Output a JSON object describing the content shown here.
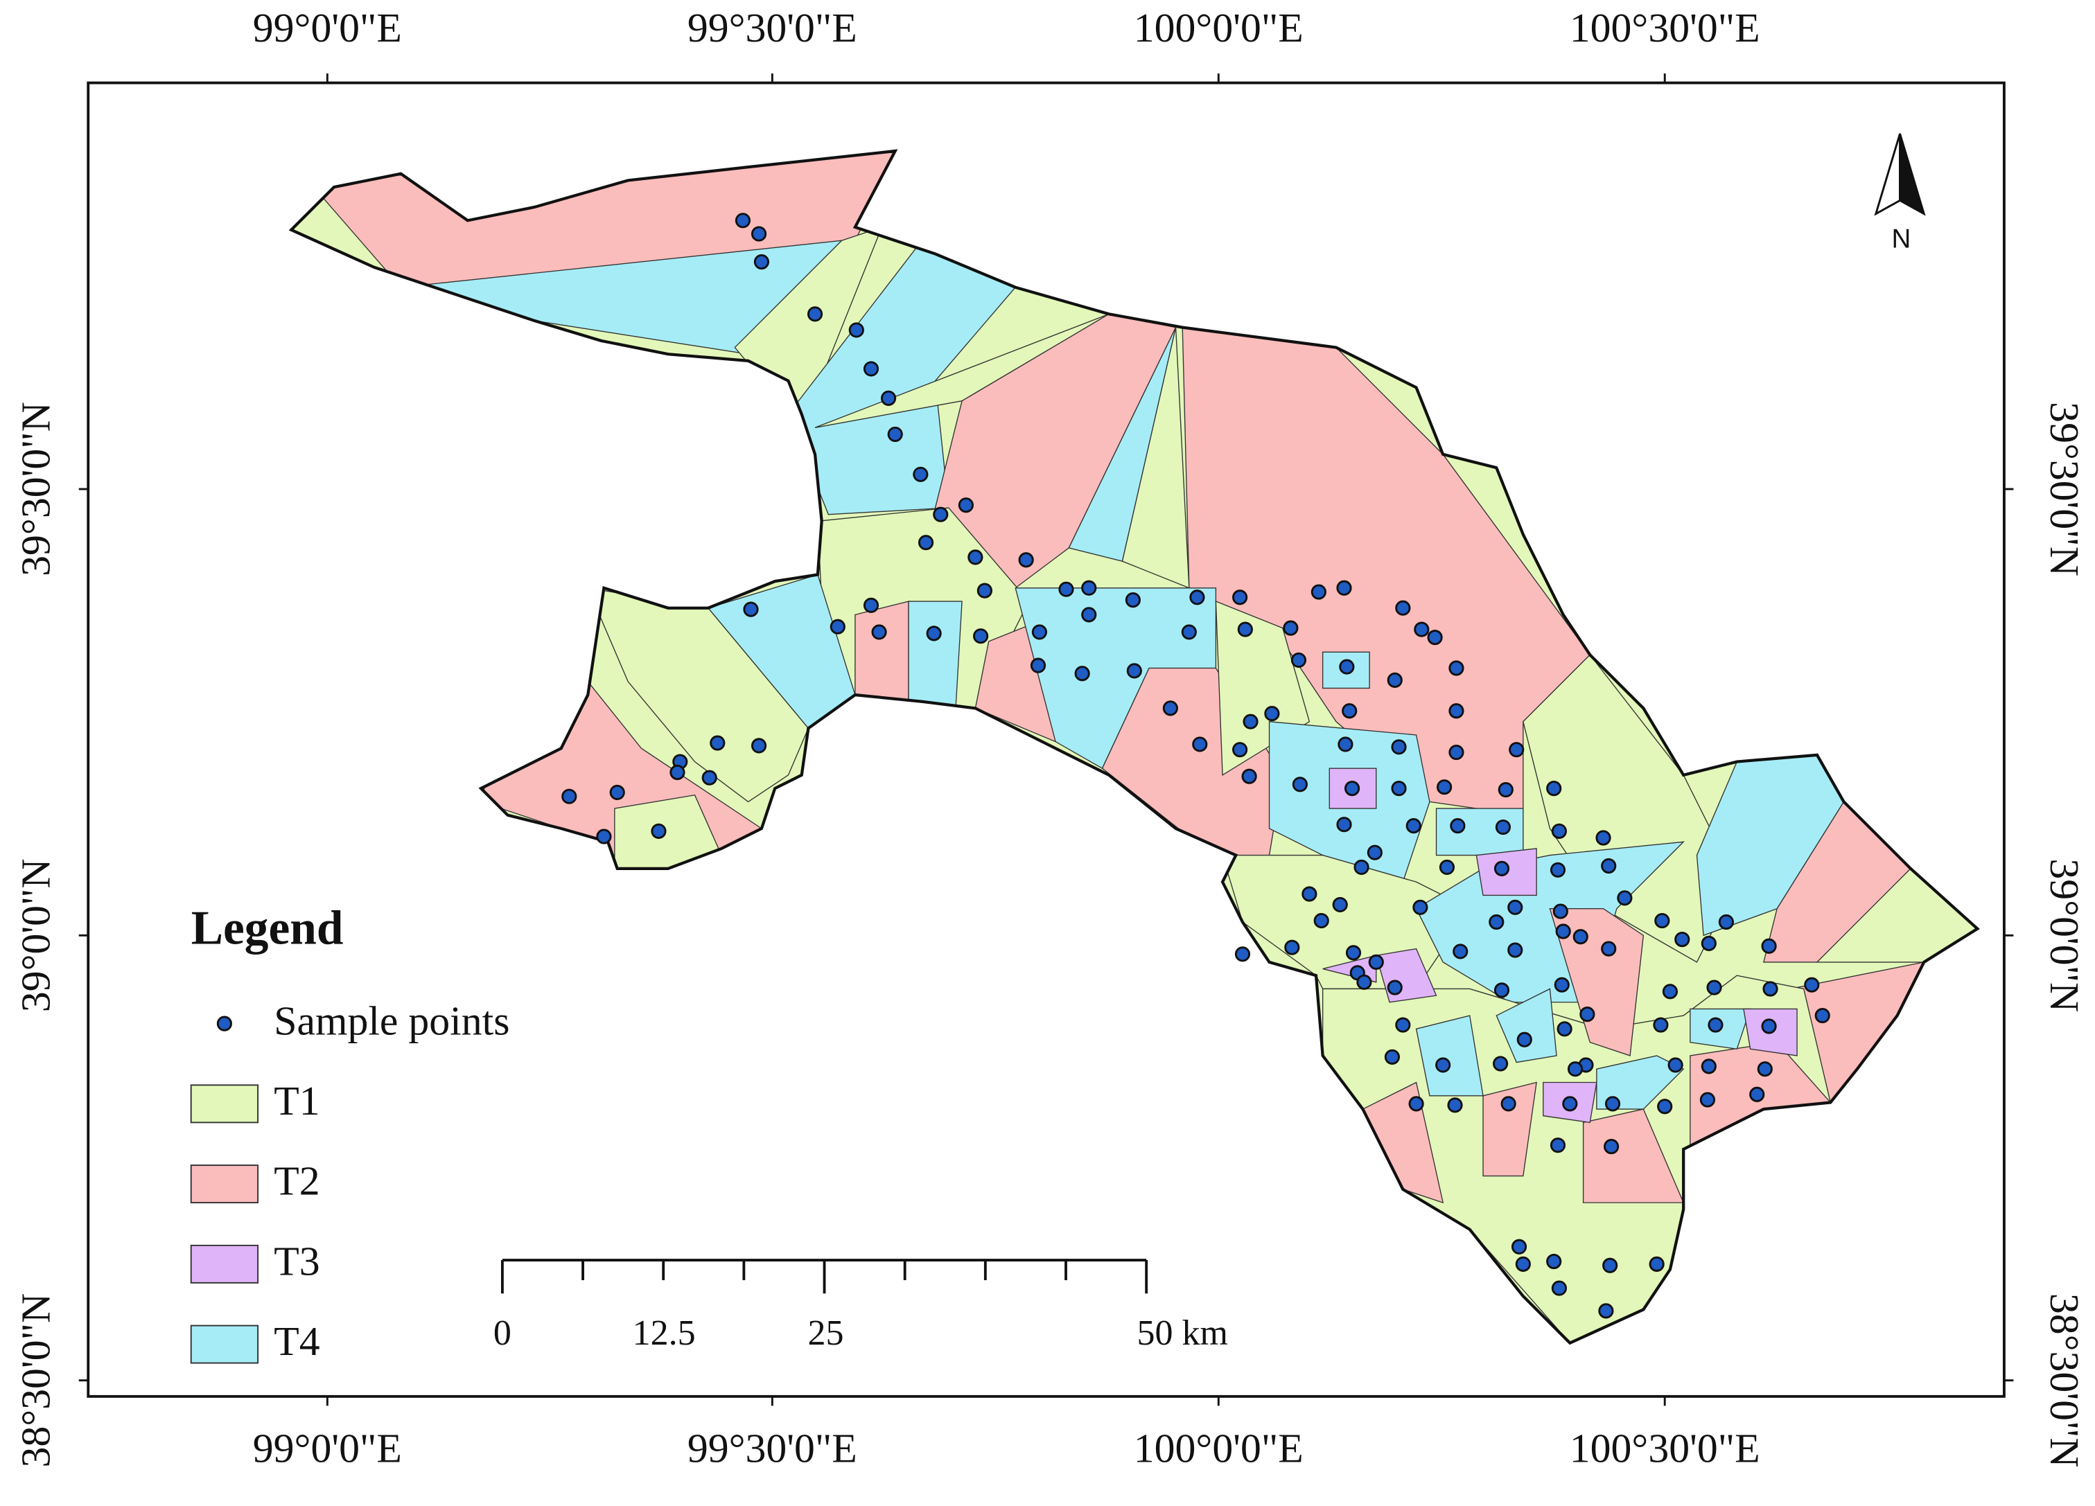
{
  "map": {
    "x_labels_top": [
      "99°0'0\"E",
      "99°30'0\"E",
      "100°0'0\"E",
      "100°30'0\"E"
    ],
    "x_labels_bottom": [
      "99°0'0\"E",
      "99°30'0\"E",
      "100°0'0\"E",
      "100°30'0\"E"
    ],
    "y_labels_left": [
      "39°30'0\"N",
      "39°0'0\"N",
      "38°30'0\"N"
    ],
    "y_labels_right": [
      "39°30'0\"N",
      "39°0'0\"N",
      "38°30'0\"N"
    ],
    "north_label": "N",
    "legend": {
      "title": "Legend",
      "points": {
        "label": "Sample points",
        "color": "#1f5cc4"
      },
      "classes": [
        {
          "label": "T1",
          "color": "#e2f7b9"
        },
        {
          "label": "T2",
          "color": "#fbbcbc"
        },
        {
          "label": "T3",
          "color": "#e0b4f8"
        },
        {
          "label": "T4",
          "color": "#a6ecf6"
        }
      ]
    },
    "scale_bar": {
      "labels": [
        "0",
        "12.5",
        "25",
        "50 km"
      ]
    }
  }
}
